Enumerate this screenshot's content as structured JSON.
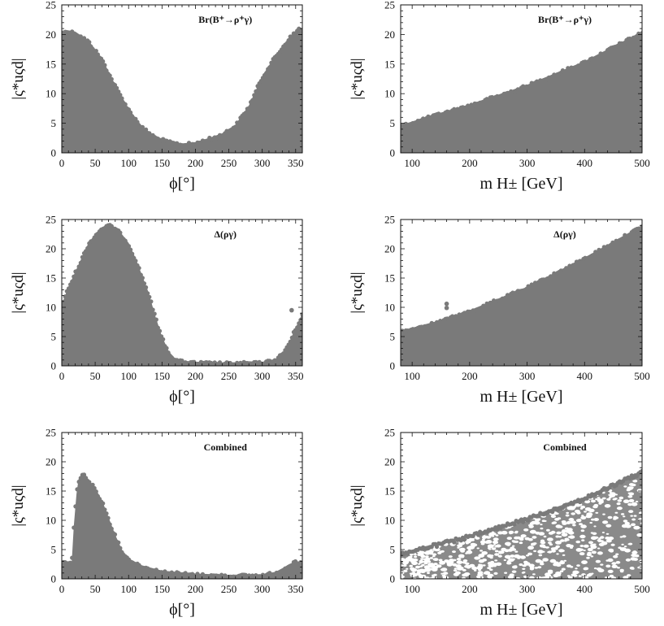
{
  "colors": {
    "region_fill": "#7a7a7a",
    "axis": "#111111",
    "background": "#ffffff"
  },
  "chart_data": [
    {
      "id": "p1",
      "type": "scatter",
      "title": "Br(B⁺→ρ⁺γ)",
      "xlabel": "ϕ[°]",
      "ylabel": "|ς*uςd|",
      "xlim": [
        0,
        360
      ],
      "ylim": [
        0,
        25
      ],
      "xticks": [
        0,
        50,
        100,
        150,
        200,
        250,
        300,
        350
      ],
      "yticks": [
        0,
        5,
        10,
        15,
        20,
        25
      ],
      "boundary_phi": [
        0,
        5,
        20,
        40,
        60,
        80,
        100,
        120,
        140,
        160,
        180,
        200,
        220,
        240,
        260,
        280,
        300,
        320,
        340,
        355,
        360
      ],
      "boundary_upper": [
        20.2,
        20.8,
        20.5,
        19.0,
        16.0,
        11.5,
        7.5,
        4.5,
        2.8,
        2.0,
        1.6,
        1.8,
        2.5,
        3.3,
        4.8,
        8.0,
        13.0,
        16.5,
        19.5,
        21.2,
        21.0
      ]
    },
    {
      "id": "p2",
      "type": "scatter",
      "title": "Br(B⁺→ρ⁺γ)",
      "xlabel": "m H± [GeV]",
      "ylabel": "|ς*uςd|",
      "xlim": [
        80,
        500
      ],
      "ylim": [
        0,
        25
      ],
      "xticks": [
        100,
        200,
        300,
        400,
        500
      ],
      "yticks": [
        0,
        5,
        10,
        15,
        20,
        25
      ],
      "boundary_mH": [
        80,
        150,
        200,
        300,
        400,
        500
      ],
      "boundary_upper": [
        4.7,
        6.8,
        8.2,
        11.5,
        15.5,
        20.5
      ]
    },
    {
      "id": "p3",
      "type": "scatter",
      "title": "Δ(ργ)",
      "xlabel": "ϕ[°]",
      "ylabel": "|ς*uςd|",
      "xlim": [
        0,
        360
      ],
      "ylim": [
        0,
        25
      ],
      "xticks": [
        0,
        50,
        100,
        150,
        200,
        250,
        300,
        350
      ],
      "yticks": [
        0,
        5,
        10,
        15,
        20,
        25
      ],
      "boundary_phi": [
        0,
        10,
        20,
        30,
        40,
        50,
        60,
        70,
        80,
        90,
        100,
        110,
        120,
        130,
        140,
        150,
        160,
        170,
        180,
        200,
        250,
        300,
        320,
        330,
        340,
        350,
        360
      ],
      "boundary_upper": [
        10.5,
        13.5,
        16.0,
        18.5,
        21.0,
        22.5,
        23.7,
        24.2,
        23.7,
        22.5,
        21.0,
        18.5,
        15.5,
        12.5,
        8.5,
        5.0,
        2.5,
        1.2,
        0.9,
        0.7,
        0.6,
        0.7,
        1.2,
        2.2,
        4.0,
        6.5,
        9.0
      ],
      "outliers": [
        [
          344,
          9.5
        ]
      ]
    },
    {
      "id": "p4",
      "type": "scatter",
      "title": "Δ(ργ)",
      "xlabel": "m H± [GeV]",
      "ylabel": "|ς*uςd|",
      "xlim": [
        80,
        500
      ],
      "ylim": [
        0,
        25
      ],
      "xticks": [
        100,
        200,
        300,
        400,
        500
      ],
      "yticks": [
        0,
        5,
        10,
        15,
        20,
        25
      ],
      "boundary_mH": [
        80,
        150,
        200,
        300,
        400,
        500
      ],
      "boundary_upper": [
        6.0,
        7.8,
        9.5,
        13.5,
        18.5,
        24.0
      ],
      "outliers": [
        [
          160,
          10.6
        ],
        [
          160,
          9.9
        ]
      ]
    },
    {
      "id": "p5",
      "type": "scatter",
      "title": "Combined",
      "xlabel": "ϕ[°]",
      "ylabel": "|ς*uςd|",
      "xlim": [
        0,
        360
      ],
      "ylim": [
        0,
        25
      ],
      "xticks": [
        0,
        50,
        100,
        150,
        200,
        250,
        300,
        350
      ],
      "yticks": [
        0,
        5,
        10,
        15,
        20,
        25
      ],
      "boundary_phi": [
        0,
        15,
        18,
        22,
        25,
        30,
        35,
        40,
        50,
        60,
        70,
        80,
        90,
        100,
        120,
        150,
        200,
        250,
        300,
        320,
        330,
        340,
        350,
        360
      ],
      "boundary_upper": [
        3.0,
        3.0,
        9.0,
        14.5,
        17.0,
        18.0,
        17.8,
        17.0,
        15.5,
        13.5,
        10.5,
        7.5,
        5.0,
        3.5,
        2.3,
        1.4,
        0.9,
        0.7,
        0.8,
        1.2,
        1.8,
        2.5,
        3.0,
        2.8
      ]
    },
    {
      "id": "p6",
      "type": "scatter",
      "title": "Combined",
      "xlabel": "m H± [GeV]",
      "ylabel": "|ς*uςd|",
      "xlim": [
        80,
        500
      ],
      "ylim": [
        0,
        25
      ],
      "xticks": [
        100,
        200,
        300,
        400,
        500
      ],
      "yticks": [
        0,
        5,
        10,
        15,
        20,
        25
      ],
      "boundary_mH": [
        80,
        200,
        300,
        400,
        500
      ],
      "boundary_upper": [
        4.5,
        7.5,
        10.5,
        14.0,
        18.5
      ],
      "speckled": true
    }
  ]
}
